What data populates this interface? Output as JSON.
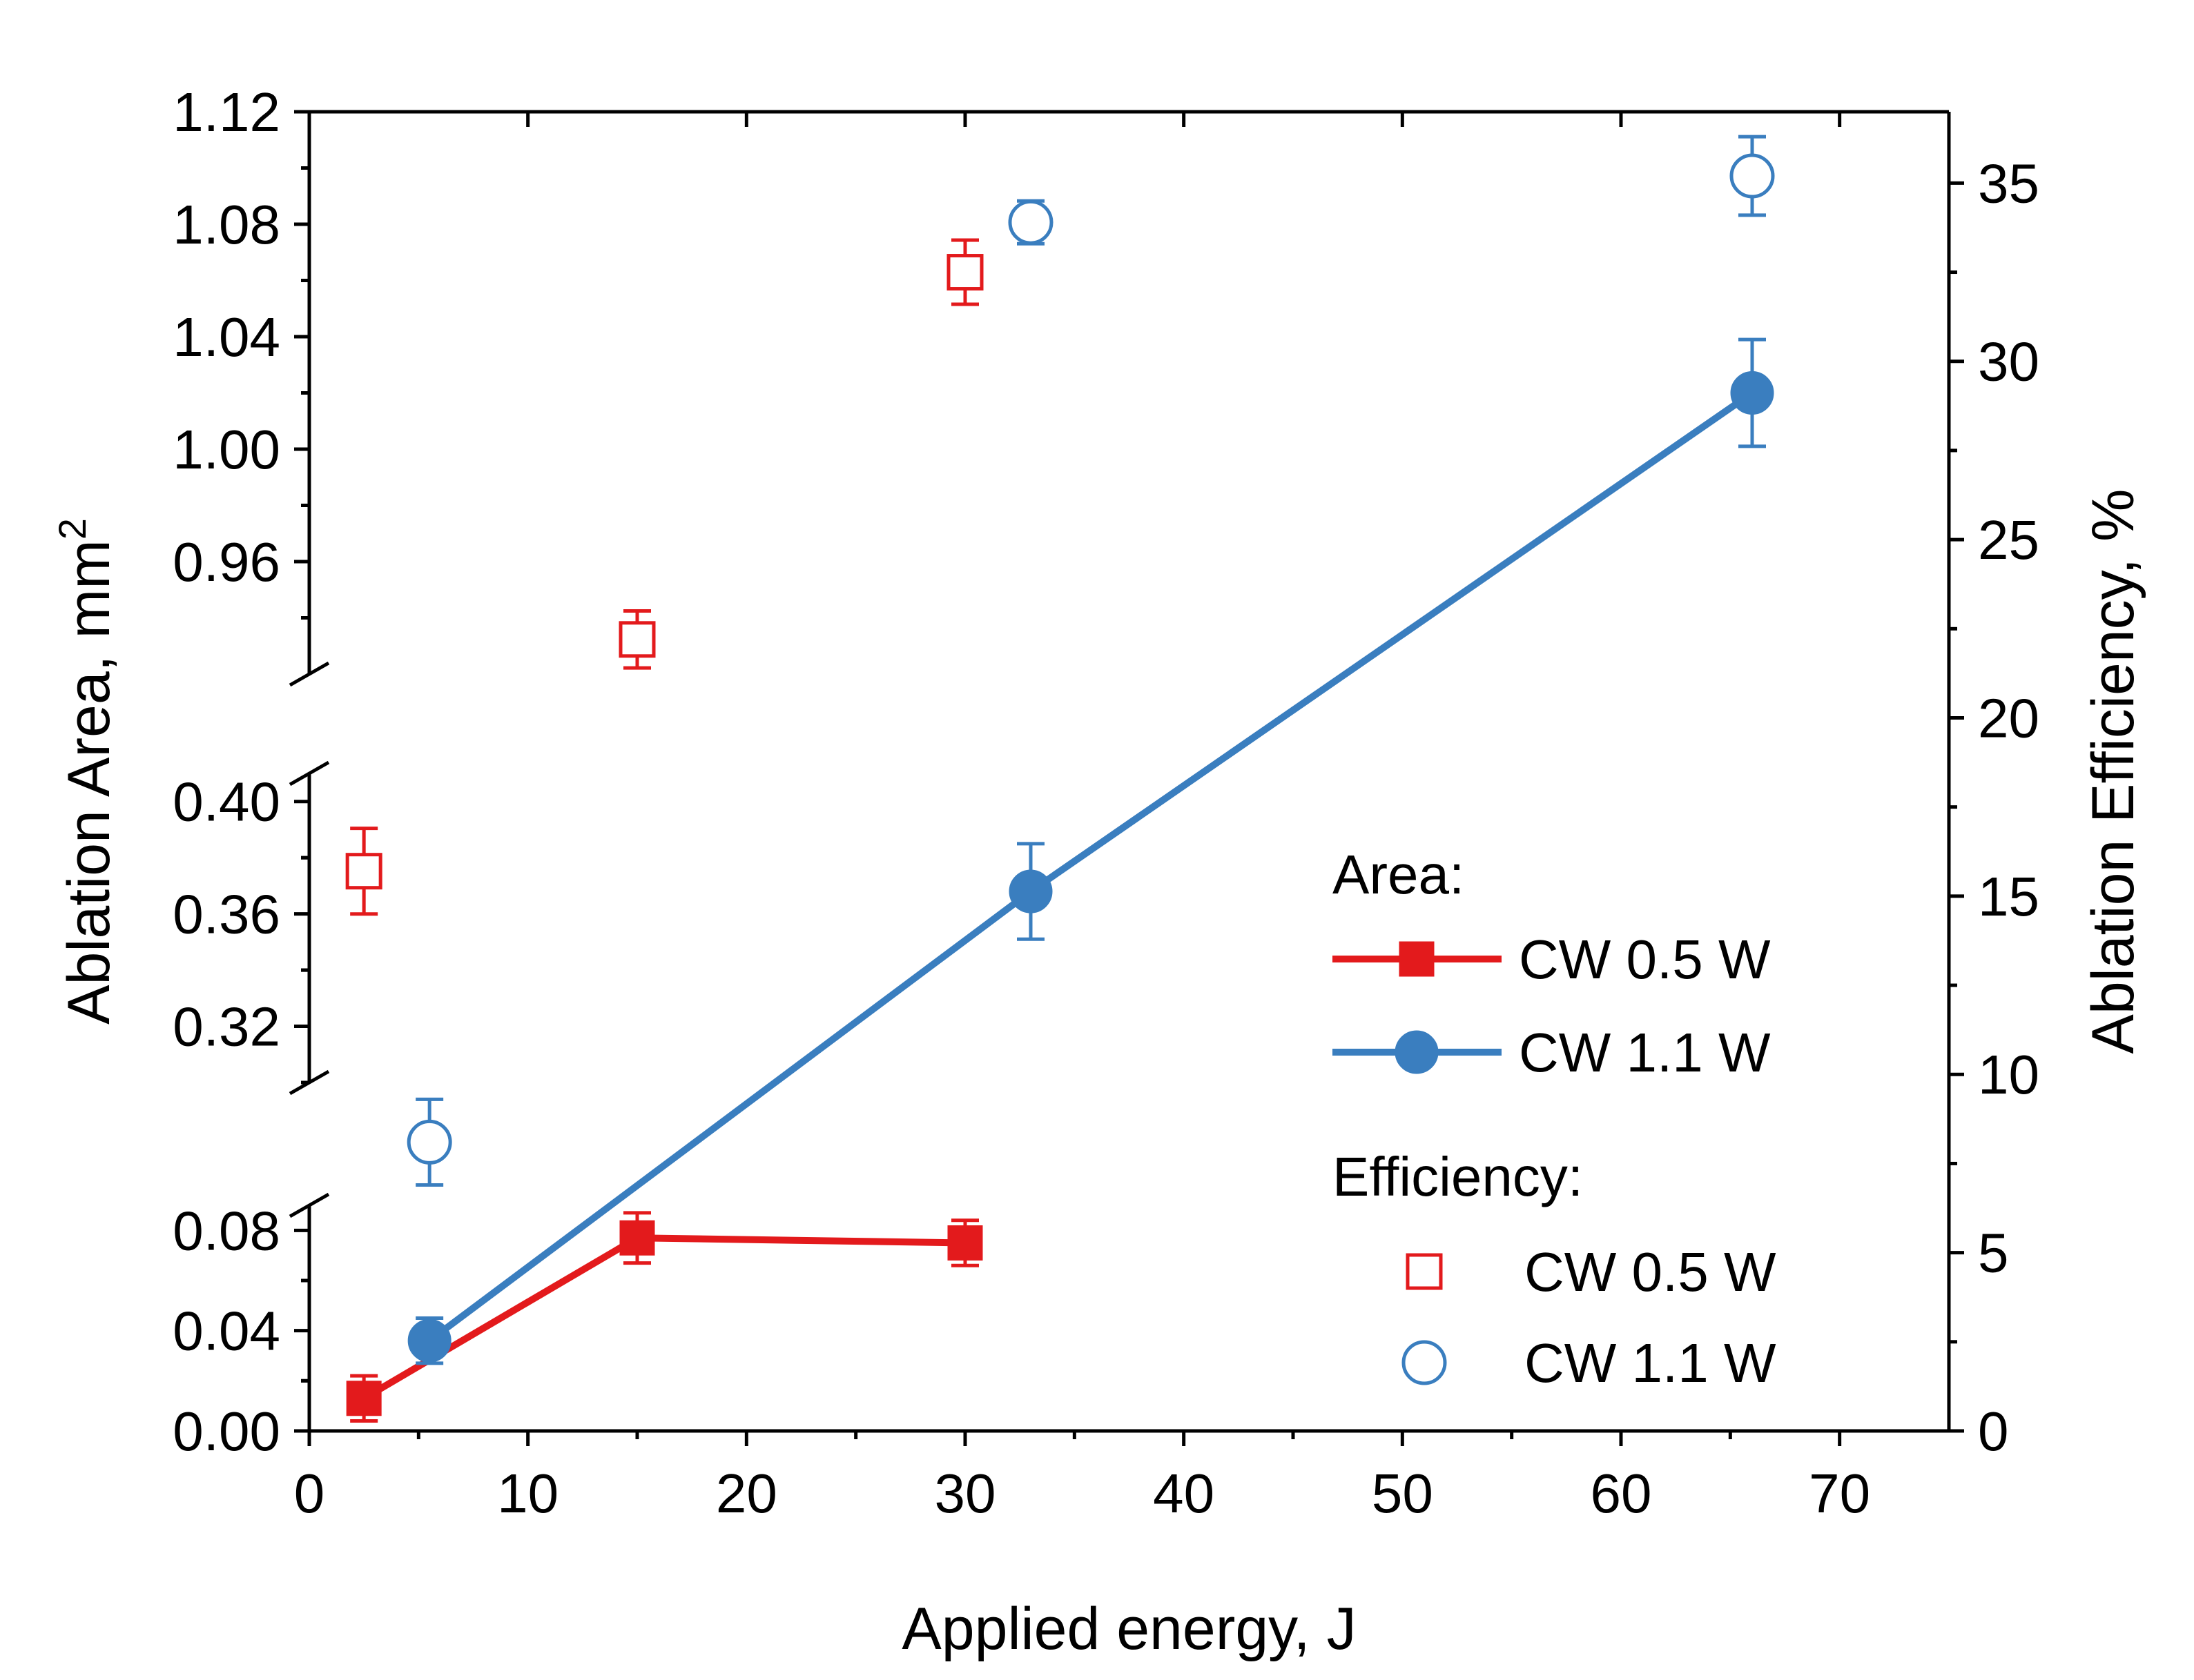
{
  "chart_data": {
    "type": "scatter",
    "xlabel": "Applied energy, J",
    "ylabel_left": "Ablation Area, mm",
    "ylabel_left_superscript": "2",
    "ylabel_right": "Ablation Efficiency, %",
    "xlim": [
      0,
      75
    ],
    "x_ticks": [
      0,
      10,
      20,
      30,
      40,
      50,
      60,
      70
    ],
    "x_tick_labels": [
      "0",
      "10",
      "20",
      "30",
      "40",
      "50",
      "60",
      "70"
    ],
    "y_left_segments": [
      {
        "range": [
          0.0,
          0.09
        ],
        "ticks": [
          0.0,
          0.04,
          0.08
        ],
        "tick_labels": [
          "0.00",
          "0.04",
          "0.08"
        ]
      },
      {
        "range": [
          0.3,
          0.41
        ],
        "ticks": [
          0.32,
          0.36,
          0.4
        ],
        "tick_labels": [
          "0.32",
          "0.36",
          "0.40"
        ]
      },
      {
        "range": [
          0.92,
          1.12
        ],
        "ticks": [
          0.96,
          1.0,
          1.04,
          1.08,
          1.12
        ],
        "tick_labels": [
          "0.96",
          "1.00",
          "1.04",
          "1.08",
          "1.12"
        ]
      }
    ],
    "y_right_lim": [
      0,
      37
    ],
    "y_right_ticks": [
      0,
      5,
      10,
      15,
      20,
      25,
      30,
      35
    ],
    "y_right_tick_labels": [
      "0",
      "5",
      "10",
      "15",
      "20",
      "25",
      "30",
      "35"
    ],
    "area_series": [
      {
        "name": "CW 0.5 W",
        "color": "#e31a1c",
        "marker": "square",
        "line": true,
        "x": [
          2.5,
          15,
          30
        ],
        "y": [
          0.013,
          0.077,
          0.075
        ],
        "err": [
          0.009,
          0.01,
          0.009
        ]
      },
      {
        "name": "CW 1.1 W",
        "color": "#3a7ebf",
        "marker": "circle",
        "line": true,
        "x": [
          5.5,
          33,
          66
        ],
        "y": [
          0.036,
          0.368,
          1.02
        ],
        "err": [
          0.009,
          0.017,
          0.019
        ]
      }
    ],
    "efficiency_series": [
      {
        "name": "CW 0.5 W",
        "color": "#e31a1c",
        "marker": "square-open",
        "x": [
          2.5,
          15,
          30
        ],
        "y": [
          15.7,
          22.2,
          32.5
        ],
        "err": [
          1.2,
          0.8,
          0.9
        ]
      },
      {
        "name": "CW 1.1 W",
        "color": "#3a7ebf",
        "marker": "circle-open",
        "x": [
          5.5,
          33,
          66
        ],
        "y": [
          8.1,
          33.9,
          35.2
        ],
        "err": [
          1.2,
          0.6,
          1.1
        ]
      }
    ],
    "legend": {
      "placement": "lower-right",
      "area_heading": "Area:",
      "efficiency_heading": "Efficiency:"
    }
  }
}
